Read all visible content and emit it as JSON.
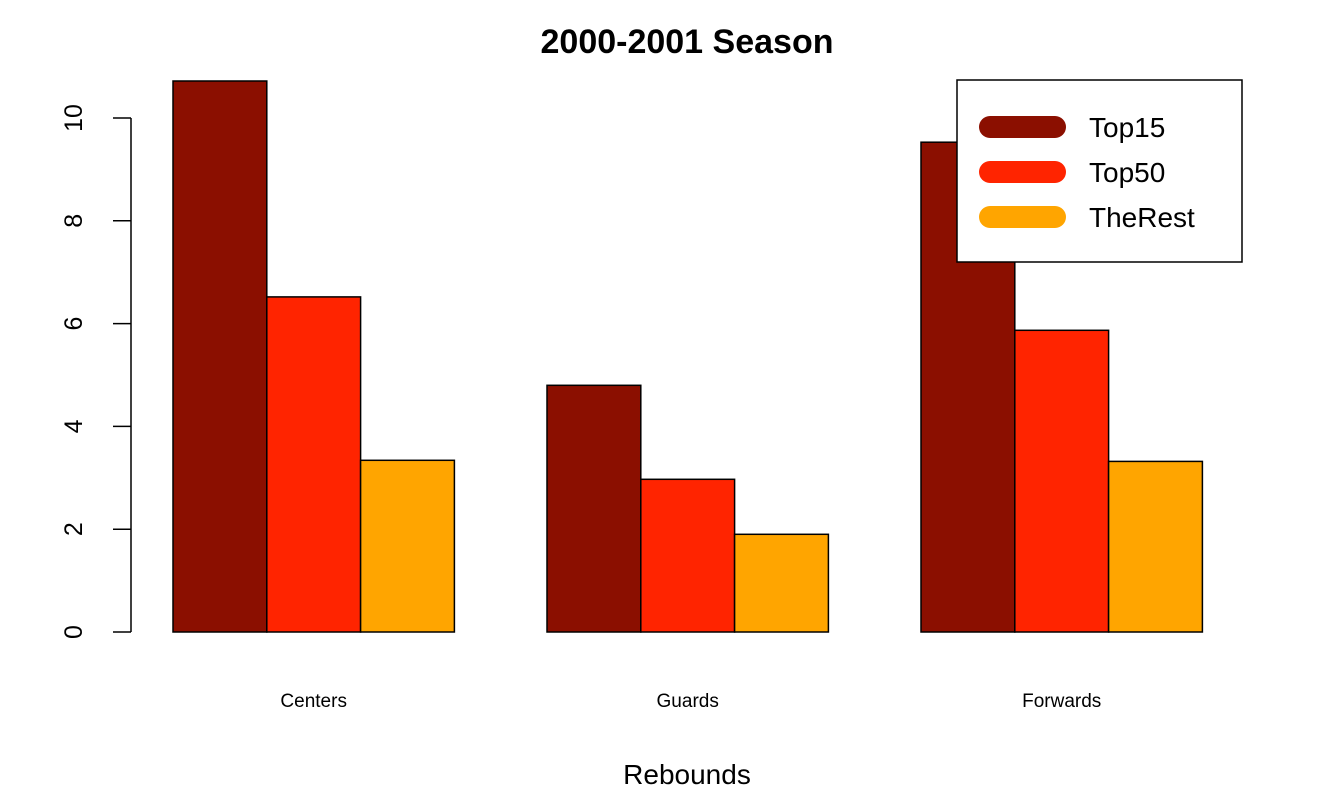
{
  "chart_data": {
    "type": "bar",
    "title": "2000-2001 Season",
    "xlabel": "Rebounds",
    "ylabel": "",
    "categories": [
      "Centers",
      "Guards",
      "Forwards"
    ],
    "series": [
      {
        "name": "Top15",
        "color": "#8B0F00",
        "values": [
          10.72,
          4.8,
          9.53
        ]
      },
      {
        "name": "Top50",
        "color": "#FF2400",
        "values": [
          6.52,
          2.97,
          5.87
        ]
      },
      {
        "name": "TheRest",
        "color": "#FFA500",
        "values": [
          3.34,
          1.9,
          3.32
        ]
      }
    ],
    "ylim": [
      0,
      10.8
    ],
    "yticks": [
      0,
      2,
      4,
      6,
      8,
      10
    ],
    "grid": false,
    "legend_position": "top-right"
  }
}
